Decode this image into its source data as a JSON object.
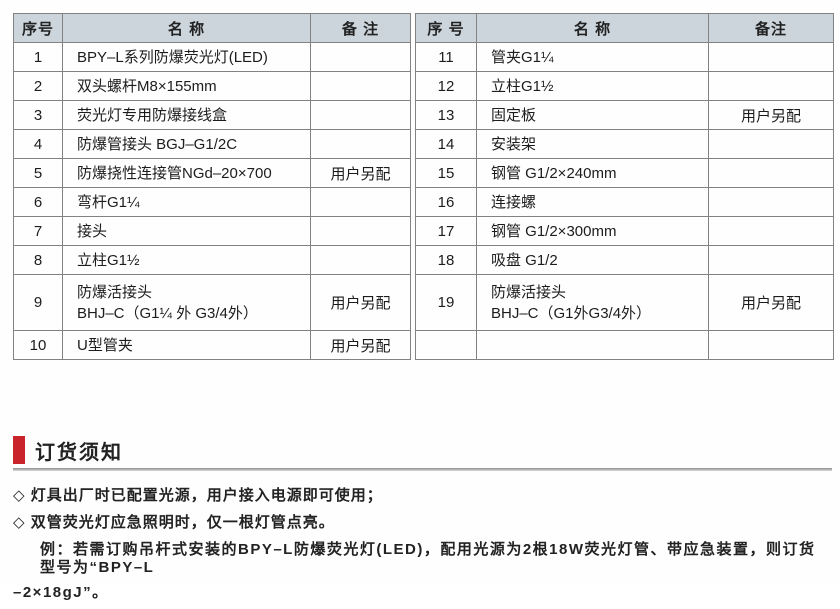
{
  "colors": {
    "accent_red": "#c9242a",
    "table_header_bg": "#ccd5dc",
    "table_border": "#828282",
    "text": "#1c1c1c"
  },
  "tables": [
    {
      "headers": [
        "序号",
        "名 称",
        "备 注"
      ],
      "rows": [
        {
          "no": "1",
          "name": "BPY–L系列防爆荧光灯(LED)",
          "note": ""
        },
        {
          "no": "2",
          "name": "双头螺杆M8×155mm",
          "note": ""
        },
        {
          "no": "3",
          "name": "荧光灯专用防爆接线盒",
          "note": ""
        },
        {
          "no": "4",
          "name": "防爆管接头 BGJ–G1/2C",
          "note": ""
        },
        {
          "no": "5",
          "name": "防爆挠性连接管NGd–20×700",
          "note": "用户另配"
        },
        {
          "no": "6",
          "name": "弯杆G1¼",
          "note": ""
        },
        {
          "no": "7",
          "name": "接头",
          "note": ""
        },
        {
          "no": "8",
          "name": "立柱G1½",
          "note": ""
        },
        {
          "no": "9",
          "name": "防爆活接头\nBHJ–C（G1¼ 外 G3/4外）",
          "note": "用户另配"
        },
        {
          "no": "10",
          "name": "U型管夹",
          "note": "用户另配"
        }
      ]
    },
    {
      "headers": [
        "序 号",
        "名 称",
        "备注"
      ],
      "rows": [
        {
          "no": "11",
          "name": "管夹G1¼",
          "note": ""
        },
        {
          "no": "12",
          "name": "立柱G1½",
          "note": ""
        },
        {
          "no": "13",
          "name": "固定板",
          "note": "用户另配"
        },
        {
          "no": "14",
          "name": "安装架",
          "note": ""
        },
        {
          "no": "15",
          "name": "钢管 G1/2×240mm",
          "note": ""
        },
        {
          "no": "16",
          "name": "连接螺",
          "note": ""
        },
        {
          "no": "17",
          "name": "钢管 G1/2×300mm",
          "note": ""
        },
        {
          "no": "18",
          "name": "吸盘 G1/2",
          "note": ""
        },
        {
          "no": "19",
          "name": "防爆活接头\nBHJ–C（G1外G3/4外）",
          "note": "用户另配"
        },
        {
          "no": "",
          "name": "",
          "note": ""
        }
      ]
    }
  ],
  "notice": {
    "title": "订货须知",
    "bullets": [
      "◇ 灯具出厂时已配置光源，用户接入电源即可使用；",
      "◇ 双管荧光灯应急照明时，仅一根灯管点亮。"
    ],
    "example_line1": "例：若需订购吊杆式安装的BPY–L防爆荧光灯(LED)，配用光源为2根18W荧光灯管、带应急装置，则订货型号为“BPY–L",
    "example_line2": "–2×18gJ”。"
  }
}
